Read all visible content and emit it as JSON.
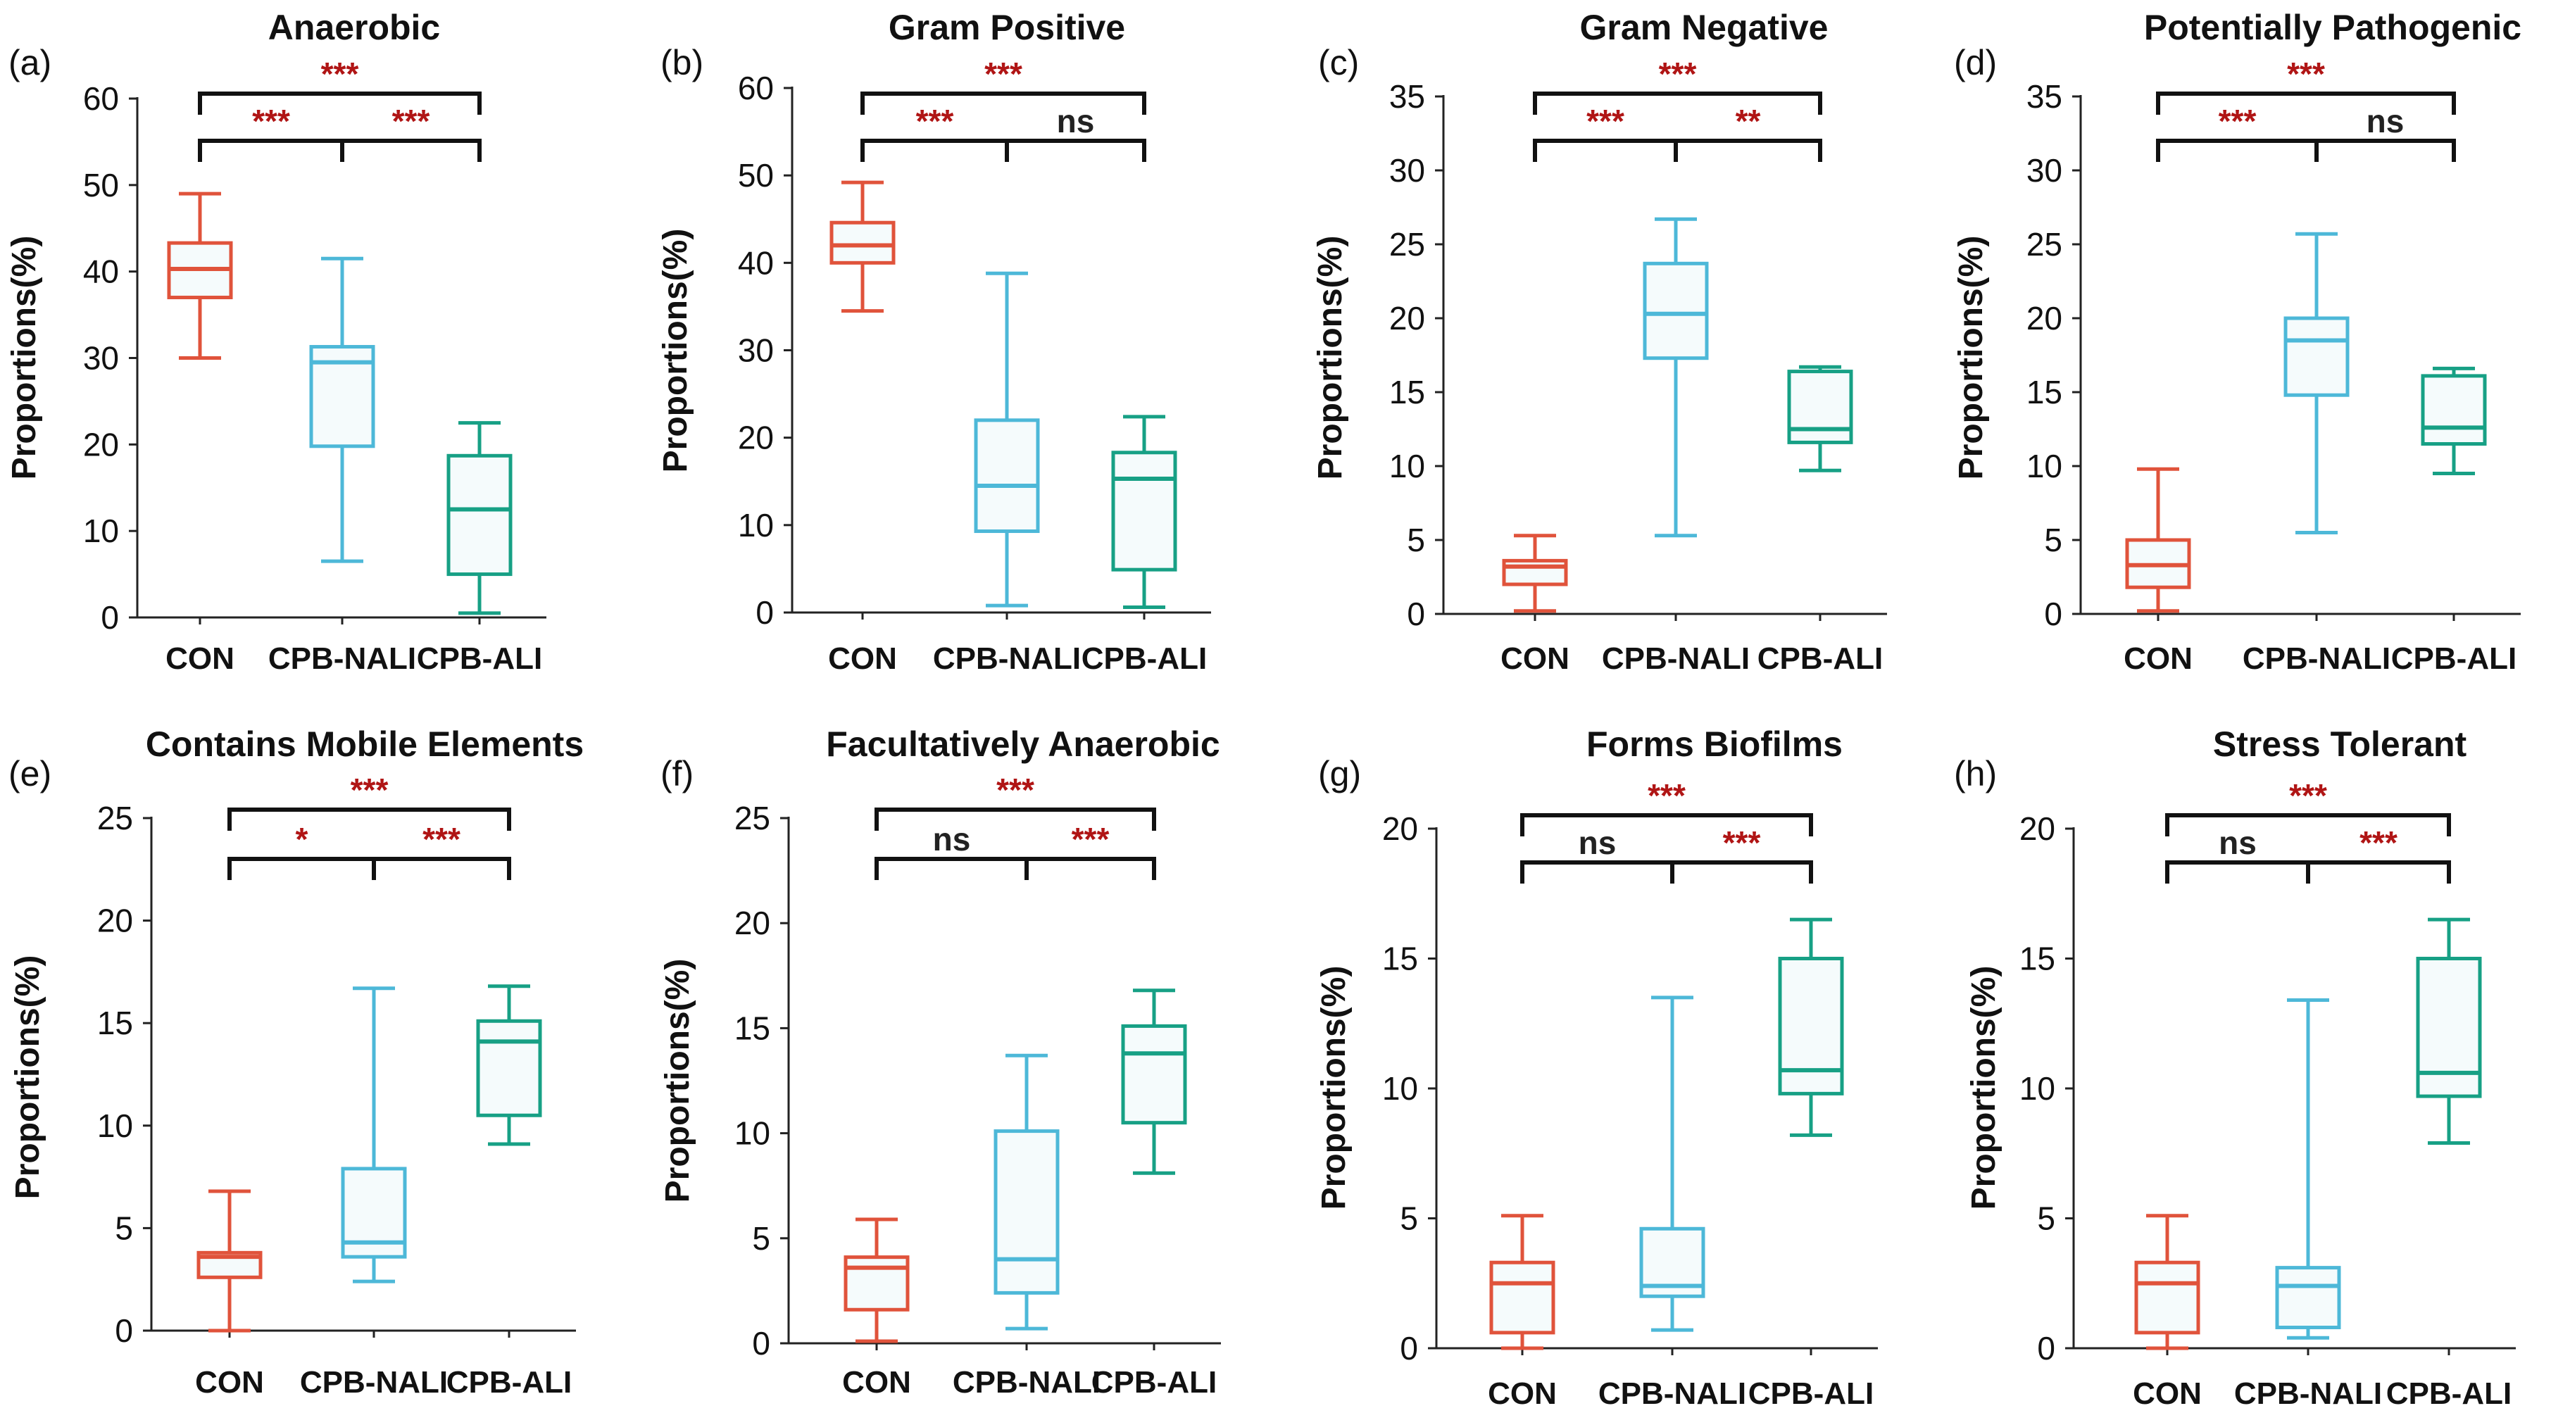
{
  "chart_data": [
    {
      "type": "box",
      "panel_label": "(a)",
      "title": "Anaerobic",
      "ylabel": "Proportions(%)",
      "ylim": [
        0,
        60
      ],
      "yticks": [
        0,
        10,
        20,
        30,
        40,
        50,
        60
      ],
      "ytick_labels": [
        "0",
        "10",
        "20",
        "30",
        "40",
        "50",
        "60"
      ],
      "categories": [
        "CON",
        "CPB-NALI",
        "CPB-ALI"
      ],
      "boxes": [
        {
          "min": 30,
          "q1": 37,
          "median": 40.3,
          "q3": 43.3,
          "max": 49
        },
        {
          "min": 6.5,
          "q1": 19.8,
          "median": 29.5,
          "q3": 31.3,
          "max": 41.5
        },
        {
          "min": 0.5,
          "q1": 5,
          "median": 12.5,
          "q3": 18.7,
          "max": 22.5
        }
      ],
      "comparisons": [
        {
          "from": 0,
          "to": 2,
          "label": "***"
        },
        {
          "from": 0,
          "to": 1,
          "label": "***"
        },
        {
          "from": 1,
          "to": 2,
          "label": "***"
        }
      ]
    },
    {
      "type": "box",
      "panel_label": "(b)",
      "title": "Gram Positive",
      "ylabel": "Proportions(%)",
      "ylim": [
        0,
        60
      ],
      "yticks": [
        0,
        10,
        20,
        30,
        40,
        50,
        60
      ],
      "ytick_labels": [
        "0",
        "10",
        "20",
        "30",
        "40",
        "50",
        "60"
      ],
      "categories": [
        "CON",
        "CPB-NALI",
        "CPB-ALI"
      ],
      "boxes": [
        {
          "min": 34.5,
          "q1": 40,
          "median": 42,
          "q3": 44.6,
          "max": 49.2
        },
        {
          "min": 0.8,
          "q1": 9.3,
          "median": 14.5,
          "q3": 22,
          "max": 38.8
        },
        {
          "min": 0.6,
          "q1": 4.9,
          "median": 15.3,
          "q3": 18.3,
          "max": 22.4
        }
      ],
      "comparisons": [
        {
          "from": 0,
          "to": 2,
          "label": "***"
        },
        {
          "from": 0,
          "to": 1,
          "label": "***"
        },
        {
          "from": 1,
          "to": 2,
          "label": "ns"
        }
      ]
    },
    {
      "type": "box",
      "panel_label": "(c)",
      "title": "Gram Negative",
      "ylabel": "Proportions(%)",
      "ylim": [
        0,
        35
      ],
      "yticks": [
        0,
        5,
        10,
        15,
        20,
        25,
        30,
        35
      ],
      "ytick_labels": [
        "0",
        "5",
        "10",
        "15",
        "20",
        "25",
        "30",
        "35"
      ],
      "categories": [
        "CON",
        "CPB-NALI",
        "CPB-ALI"
      ],
      "boxes": [
        {
          "min": 0.2,
          "q1": 2,
          "median": 3.2,
          "q3": 3.6,
          "max": 5.3
        },
        {
          "min": 5.3,
          "q1": 17.3,
          "median": 20.3,
          "q3": 23.7,
          "max": 26.7
        },
        {
          "min": 9.7,
          "q1": 11.6,
          "median": 12.5,
          "q3": 16.4,
          "max": 16.7
        }
      ],
      "comparisons": [
        {
          "from": 0,
          "to": 2,
          "label": "***"
        },
        {
          "from": 0,
          "to": 1,
          "label": "***"
        },
        {
          "from": 1,
          "to": 2,
          "label": "**"
        }
      ]
    },
    {
      "type": "box",
      "panel_label": "(d)",
      "title": "Potentially Pathogenic",
      "ylabel": "Proportions(%)",
      "ylim": [
        0,
        35
      ],
      "yticks": [
        0,
        5,
        10,
        15,
        20,
        25,
        30,
        35
      ],
      "ytick_labels": [
        "0",
        "5",
        "10",
        "15",
        "20",
        "25",
        "30",
        "35"
      ],
      "categories": [
        "CON",
        "CPB-NALI",
        "CPB-ALI"
      ],
      "boxes": [
        {
          "min": 0.2,
          "q1": 1.8,
          "median": 3.3,
          "q3": 5,
          "max": 9.8
        },
        {
          "min": 5.5,
          "q1": 14.8,
          "median": 18.5,
          "q3": 20,
          "max": 25.7
        },
        {
          "min": 9.5,
          "q1": 11.5,
          "median": 12.6,
          "q3": 16.1,
          "max": 16.6
        }
      ],
      "comparisons": [
        {
          "from": 0,
          "to": 2,
          "label": "***"
        },
        {
          "from": 0,
          "to": 1,
          "label": "***"
        },
        {
          "from": 1,
          "to": 2,
          "label": "ns"
        }
      ]
    },
    {
      "type": "box",
      "panel_label": "(e)",
      "title": "Contains Mobile Elements",
      "ylabel": "Proportions(%)",
      "ylim": [
        0,
        25
      ],
      "yticks": [
        0,
        5,
        10,
        15,
        20,
        25
      ],
      "ytick_labels": [
        "0",
        "5",
        "10",
        "15",
        "20",
        "25"
      ],
      "categories": [
        "CON",
        "CPB-NALI",
        "CPB-ALI"
      ],
      "boxes": [
        {
          "min": 0,
          "q1": 2.6,
          "median": 3.6,
          "q3": 3.8,
          "max": 6.8
        },
        {
          "min": 2.4,
          "q1": 3.6,
          "median": 4.3,
          "q3": 7.9,
          "max": 16.7
        },
        {
          "min": 9.1,
          "q1": 10.5,
          "median": 14.1,
          "q3": 15.1,
          "max": 16.8
        }
      ],
      "comparisons": [
        {
          "from": 0,
          "to": 2,
          "label": "***"
        },
        {
          "from": 0,
          "to": 1,
          "label": "*"
        },
        {
          "from": 1,
          "to": 2,
          "label": "***"
        }
      ]
    },
    {
      "type": "box",
      "panel_label": "(f)",
      "title": "Facultatively Anaerobic",
      "ylabel": "Proportions(%)",
      "ylim": [
        0,
        25
      ],
      "yticks": [
        0,
        5,
        10,
        15,
        20,
        25
      ],
      "ytick_labels": [
        "0",
        "5",
        "10",
        "15",
        "20",
        "25"
      ],
      "categories": [
        "CON",
        "CPB-NALI",
        "CPB-ALI"
      ],
      "boxes": [
        {
          "min": 0.1,
          "q1": 1.6,
          "median": 3.6,
          "q3": 4.1,
          "max": 5.9
        },
        {
          "min": 0.7,
          "q1": 2.4,
          "median": 4,
          "q3": 10.1,
          "max": 13.7
        },
        {
          "min": 8.1,
          "q1": 10.5,
          "median": 13.8,
          "q3": 15.1,
          "max": 16.8
        }
      ],
      "comparisons": [
        {
          "from": 0,
          "to": 2,
          "label": "***"
        },
        {
          "from": 0,
          "to": 1,
          "label": "ns"
        },
        {
          "from": 1,
          "to": 2,
          "label": "***"
        }
      ]
    },
    {
      "type": "box",
      "panel_label": "(g)",
      "title": "Forms Biofilms",
      "ylabel": "Proportions(%)",
      "ylim": [
        0,
        20
      ],
      "yticks": [
        0,
        5,
        10,
        15,
        20
      ],
      "ytick_labels": [
        "0",
        "5",
        "10",
        "15",
        "20"
      ],
      "categories": [
        "CON",
        "CPB-NALI",
        "CPB-ALI"
      ],
      "boxes": [
        {
          "min": 0,
          "q1": 0.6,
          "median": 2.5,
          "q3": 3.3,
          "max": 5.1
        },
        {
          "min": 0.7,
          "q1": 2,
          "median": 2.4,
          "q3": 4.6,
          "max": 13.5
        },
        {
          "min": 8.2,
          "q1": 9.8,
          "median": 10.7,
          "q3": 15,
          "max": 16.5
        }
      ],
      "comparisons": [
        {
          "from": 0,
          "to": 2,
          "label": "***"
        },
        {
          "from": 0,
          "to": 1,
          "label": "ns"
        },
        {
          "from": 1,
          "to": 2,
          "label": "***"
        }
      ]
    },
    {
      "type": "box",
      "panel_label": "(h)",
      "title": "Stress Tolerant",
      "ylabel": "Proportions(%)",
      "ylim": [
        0,
        20
      ],
      "yticks": [
        0,
        5,
        10,
        15,
        20
      ],
      "ytick_labels": [
        "0",
        "5",
        "10",
        "15",
        "20"
      ],
      "categories": [
        "CON",
        "CPB-NALI",
        "CPB-ALI"
      ],
      "boxes": [
        {
          "min": 0,
          "q1": 0.6,
          "median": 2.5,
          "q3": 3.3,
          "max": 5.1
        },
        {
          "min": 0.4,
          "q1": 0.8,
          "median": 2.4,
          "q3": 3.1,
          "max": 13.4
        },
        {
          "min": 7.9,
          "q1": 9.7,
          "median": 10.6,
          "q3": 15,
          "max": 16.5
        }
      ],
      "comparisons": [
        {
          "from": 0,
          "to": 2,
          "label": "***"
        },
        {
          "from": 0,
          "to": 1,
          "label": "ns"
        },
        {
          "from": 1,
          "to": 2,
          "label": "***"
        }
      ]
    }
  ],
  "colors": {
    "con": "#e0533b",
    "nali": "#4db8d8",
    "ali": "#17a085",
    "box_fill": "#f5fbfc",
    "sig": "#b01515",
    "ns": "#222222"
  }
}
